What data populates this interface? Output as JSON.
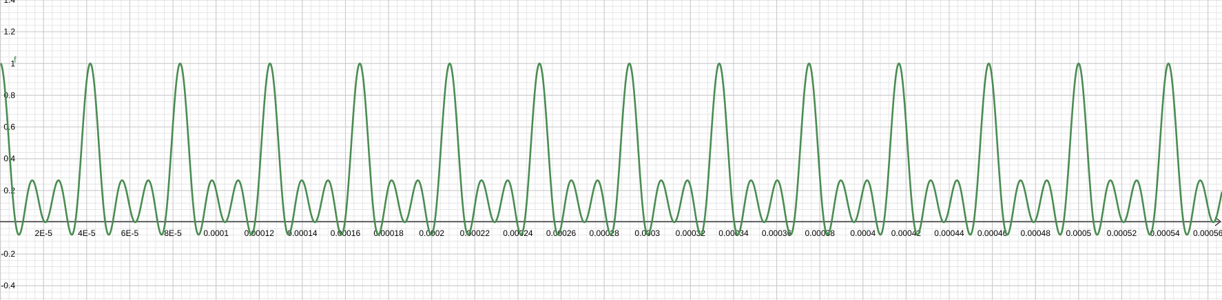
{
  "chart_data": {
    "type": "line",
    "title": "",
    "xlabel": "",
    "ylabel": "",
    "xlim": [
      -2e-07,
      0.0005665
    ],
    "ylim": [
      -0.49,
      1.4
    ],
    "grid": true,
    "x_ticks": [
      "2E-5",
      "4E-5",
      "6E-5",
      "8E-5",
      "0.0001",
      "0.00012",
      "0.00014",
      "0.00016",
      "0.00018",
      "0.0002",
      "0.00022",
      "0.00024",
      "0.00026",
      "0.00028",
      "0.0003",
      "0.00032",
      "0.00034",
      "0.00036",
      "0.00038",
      "0.0004",
      "0.00042",
      "0.00044",
      "0.00046",
      "0.00048",
      "0.0005",
      "0.00052",
      "0.00054",
      "0.00056"
    ],
    "y_ticks": [
      "1.4",
      "1.2",
      "1",
      "0.8",
      "0.6",
      "0.4",
      "0.2",
      "-0.2",
      "-0.4"
    ],
    "series": [
      {
        "name": "f",
        "color": "#4a8c52",
        "period": 4.16667e-05,
        "harmonics": 3,
        "peak_x": [
          0,
          4.17e-05,
          8.33e-05,
          0.000125,
          0.0001667,
          0.0002083,
          0.00025,
          0.0002917,
          0.0003333,
          0.000375,
          0.0004167,
          0.0004583,
          0.0005,
          0.0005417
        ],
        "peak_y": 1,
        "secondary_peak_y": 0.265,
        "min_y": -0.085
      }
    ]
  }
}
